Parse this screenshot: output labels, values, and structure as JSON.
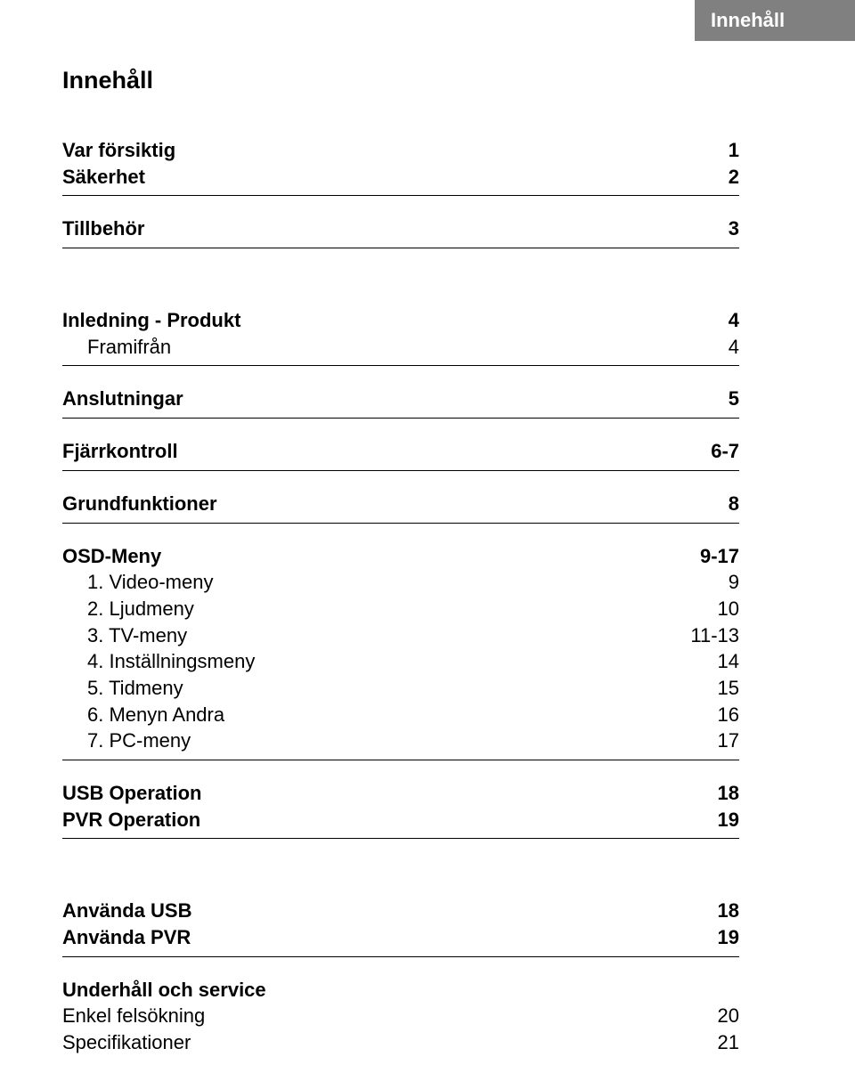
{
  "tab_label": "Innehåll",
  "page_title": "Innehåll",
  "sec1": {
    "r1": {
      "label": "Var försiktig",
      "page": "1"
    },
    "r2": {
      "label": "Säkerhet",
      "page": "2"
    }
  },
  "sec2": {
    "r1": {
      "label": "Tillbehör",
      "page": "3"
    }
  },
  "sec3": {
    "r1": {
      "label": "Inledning - Produkt",
      "page": "4"
    },
    "r2": {
      "label": "Framifrån",
      "page": "4"
    }
  },
  "sec4": {
    "r1": {
      "label": "Anslutningar",
      "page": "5"
    }
  },
  "sec5": {
    "r1": {
      "label": "Fjärrkontroll",
      "page": "6-7"
    }
  },
  "sec6": {
    "r1": {
      "label": "Grundfunktioner",
      "page": "8"
    }
  },
  "sec7": {
    "r1": {
      "label": "OSD-Meny",
      "page": "9-17"
    },
    "r2": {
      "label": "1. Video-meny",
      "page": "9"
    },
    "r3": {
      "label": "2. Ljudmeny",
      "page": "10"
    },
    "r4": {
      "label": "3. TV-meny",
      "page": "11-13"
    },
    "r5": {
      "label": "4. Inställningsmeny",
      "page": "14"
    },
    "r6": {
      "label": "5. Tidmeny",
      "page": "15"
    },
    "r7": {
      "label": "6. Menyn Andra",
      "page": "16"
    },
    "r8": {
      "label": "7. PC-meny",
      "page": "17"
    }
  },
  "sec8": {
    "r1": {
      "label": "USB Operation",
      "page": "18"
    },
    "r2": {
      "label": "PVR Operation",
      "page": "19"
    }
  },
  "sec9": {
    "r1": {
      "label": "Använda USB",
      "page": "18"
    },
    "r2": {
      "label": "Använda PVR",
      "page": "19"
    }
  },
  "sec10": {
    "r1": {
      "label": "Underhåll och service",
      "page": ""
    },
    "r2": {
      "label": "Enkel felsökning",
      "page": "20"
    },
    "r3": {
      "label": "Specifikationer",
      "page": "21"
    }
  }
}
